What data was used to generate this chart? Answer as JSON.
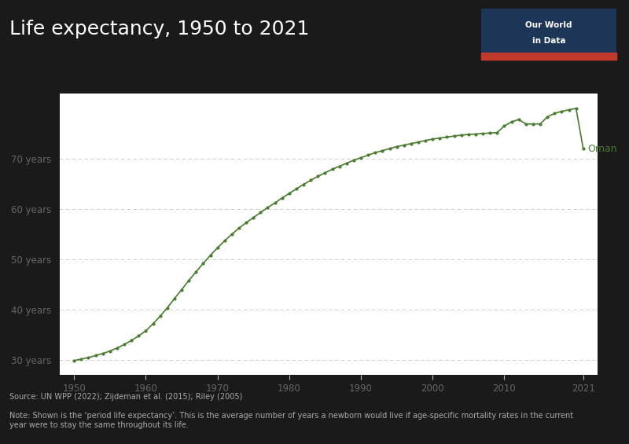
{
  "title": "Life expectancy, 1950 to 2021",
  "background_color": "#1a1a1a",
  "plot_background_color": "#ffffff",
  "line_color": "#4a7c2f",
  "marker_color": "#4a7c2f",
  "source_text": "Source: UN WPP (2022); Zijdeman et al. (2015); Riley (2005)",
  "note_text": "Note: Shown is the ‘period life expectancy’. This is the average number of years a newborn would live if age-specific mortality rates in the current\nyear were to stay the same throughout its life.",
  "label": "Oman",
  "ytick_labels": [
    "30 years",
    "40 years",
    "50 years",
    "60 years",
    "70 years"
  ],
  "ytick_values": [
    30,
    40,
    50,
    60,
    70
  ],
  "xtick_labels": [
    "1950",
    "1960",
    "1970",
    "1980",
    "1990",
    "2000",
    "2010",
    "2021"
  ],
  "xtick_values": [
    1950,
    1960,
    1970,
    1980,
    1990,
    2000,
    2010,
    2021
  ],
  "years": [
    1950,
    1951,
    1952,
    1953,
    1954,
    1955,
    1956,
    1957,
    1958,
    1959,
    1960,
    1961,
    1962,
    1963,
    1964,
    1965,
    1966,
    1967,
    1968,
    1969,
    1970,
    1971,
    1972,
    1973,
    1974,
    1975,
    1976,
    1977,
    1978,
    1979,
    1980,
    1981,
    1982,
    1983,
    1984,
    1985,
    1986,
    1987,
    1988,
    1989,
    1990,
    1991,
    1992,
    1993,
    1994,
    1995,
    1996,
    1997,
    1998,
    1999,
    2000,
    2001,
    2002,
    2003,
    2004,
    2005,
    2006,
    2007,
    2008,
    2009,
    2010,
    2011,
    2012,
    2013,
    2014,
    2015,
    2016,
    2017,
    2018,
    2019,
    2020,
    2021
  ],
  "values": [
    29.9,
    30.2,
    30.5,
    30.9,
    31.3,
    31.8,
    32.4,
    33.1,
    33.9,
    34.8,
    35.8,
    37.2,
    38.7,
    40.4,
    42.2,
    44.0,
    45.8,
    47.5,
    49.2,
    50.8,
    52.3,
    53.7,
    55.0,
    56.2,
    57.3,
    58.3,
    59.3,
    60.3,
    61.2,
    62.2,
    63.1,
    64.0,
    64.9,
    65.7,
    66.5,
    67.2,
    67.9,
    68.5,
    69.1,
    69.7,
    70.2,
    70.7,
    71.2,
    71.6,
    72.0,
    72.4,
    72.7,
    73.0,
    73.3,
    73.6,
    73.9,
    74.1,
    74.3,
    74.5,
    74.7,
    74.8,
    74.9,
    75.0,
    75.1,
    75.2,
    76.5,
    77.3,
    77.8,
    76.9,
    76.9,
    76.9,
    78.3,
    79.0,
    79.4,
    79.7,
    80.0,
    72.0
  ],
  "xlim": [
    1948,
    2023
  ],
  "ylim": [
    27,
    83
  ],
  "owid_box_color": "#1d3557",
  "owid_red": "#c0392b",
  "title_fontsize": 18,
  "source_fontsize": 7.0,
  "label_fontsize": 9
}
